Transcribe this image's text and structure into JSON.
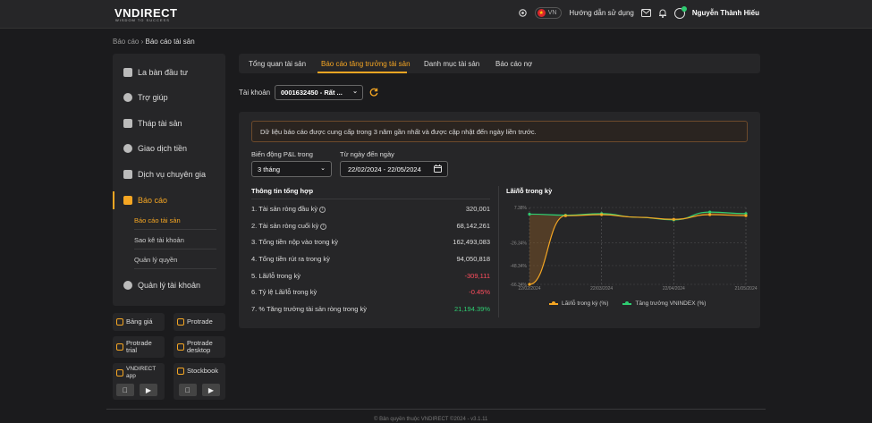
{
  "header": {
    "logo": "VNDIRECT",
    "logo_tagline": "WISDOM TO SUCCESS",
    "lang": "VN",
    "guide": "Hướng dẫn sử dụng",
    "user_name": "Nguyễn Thành Hiếu"
  },
  "breadcrumb": {
    "root": "Báo cáo",
    "sep": "›",
    "current": "Báo cáo tài sản"
  },
  "sidebar": {
    "items": [
      {
        "label": "La bàn đầu tư",
        "icon": "compass-icon"
      },
      {
        "label": "Trợ giúp",
        "icon": "help-icon"
      },
      {
        "label": "Tháp tài sản",
        "icon": "tower-icon"
      },
      {
        "label": "Giao dịch tiền",
        "icon": "money-transfer-icon"
      },
      {
        "label": "Dịch vụ chuyên gia",
        "icon": "expert-icon"
      },
      {
        "label": "Báo cáo",
        "icon": "report-icon"
      },
      {
        "label": "Quản lý tài khoản",
        "icon": "user-icon"
      }
    ],
    "sub_items": [
      "Báo cáo tài sản",
      "Sao kê tài khoản",
      "Quản lý quyền"
    ]
  },
  "tiles": {
    "bang_gia": "Bảng giá",
    "protrade": "Protrade",
    "protrade_trial_1": "Protrade",
    "protrade_trial_2": "trial",
    "protrade_desktop_1": "Protrade",
    "protrade_desktop_2": "desktop",
    "vndirect_app_1": "VNDIRECT",
    "vndirect_app_2": "app",
    "stockbook": "Stockbook"
  },
  "tabs": [
    "Tổng quan tài sản",
    "Báo cáo tăng trưởng tài sản",
    "Danh mục tài sản",
    "Báo cáo nợ"
  ],
  "account": {
    "label": "Tài khoản",
    "value": "0001632450 - Rất ..."
  },
  "notice": "Dữ liệu báo cáo được cung cấp trong 3 năm gần nhất và được cập nhật đến ngày liền trước.",
  "filters": {
    "pl_label": "Biến động P&L trong",
    "pl_value": "3 tháng",
    "date_label": "Từ ngày đến ngày",
    "date_value": "22/02/2024 - 22/05/2024"
  },
  "summary": {
    "title": "Thông tin tổng hợp",
    "rows": [
      {
        "label": "1. Tài sản ròng đầu kỳ",
        "value": "320,001"
      },
      {
        "label": "2. Tài sản ròng cuối kỳ",
        "value": "68,142,261"
      },
      {
        "label": "3. Tổng tiền nộp vào trong kỳ",
        "value": "162,493,083"
      },
      {
        "label": "4. Tổng tiền rút ra trong kỳ",
        "value": "94,050,818"
      },
      {
        "label": "5. Lãi/lỗ trong kỳ",
        "value": "-309,111"
      },
      {
        "label": "6. Tỷ lệ Lãi/lỗ trong kỳ",
        "value": "-0.45%"
      },
      {
        "label": "7. % Tăng trưởng tài sản ròng trong kỳ",
        "value": "21,194.39%"
      }
    ]
  },
  "colors": {
    "accent": "#f5a623",
    "negative": "#ff4d5e",
    "positive": "#2ecc71"
  },
  "chart_data": {
    "type": "line",
    "title": "Lãi/lỗ trong kỳ",
    "y_ticks": [
      "7.38%",
      "-26.34%",
      "-48.34%",
      "-66.34%"
    ],
    "x_ticks": [
      "22/02/2024",
      "22/03/2024",
      "22/04/2024",
      "21/05/2024"
    ],
    "ylim": [
      -66.34,
      7.38
    ],
    "series": [
      {
        "name": "Lãi/lỗ trong kỳ (%)",
        "color": "#f5a623",
        "values": [
          -66.34,
          -0.5,
          0.5,
          -2.0,
          -4.0,
          0.5,
          -0.45
        ]
      },
      {
        "name": "Tăng trưởng VNINDEX (%)",
        "color": "#2ecc71",
        "values": [
          1.0,
          0.0,
          1.5,
          -2.0,
          -4.5,
          3.0,
          1.5
        ]
      }
    ],
    "x": [
      0,
      1,
      2,
      3,
      4,
      5,
      6
    ],
    "grid": true
  }
}
